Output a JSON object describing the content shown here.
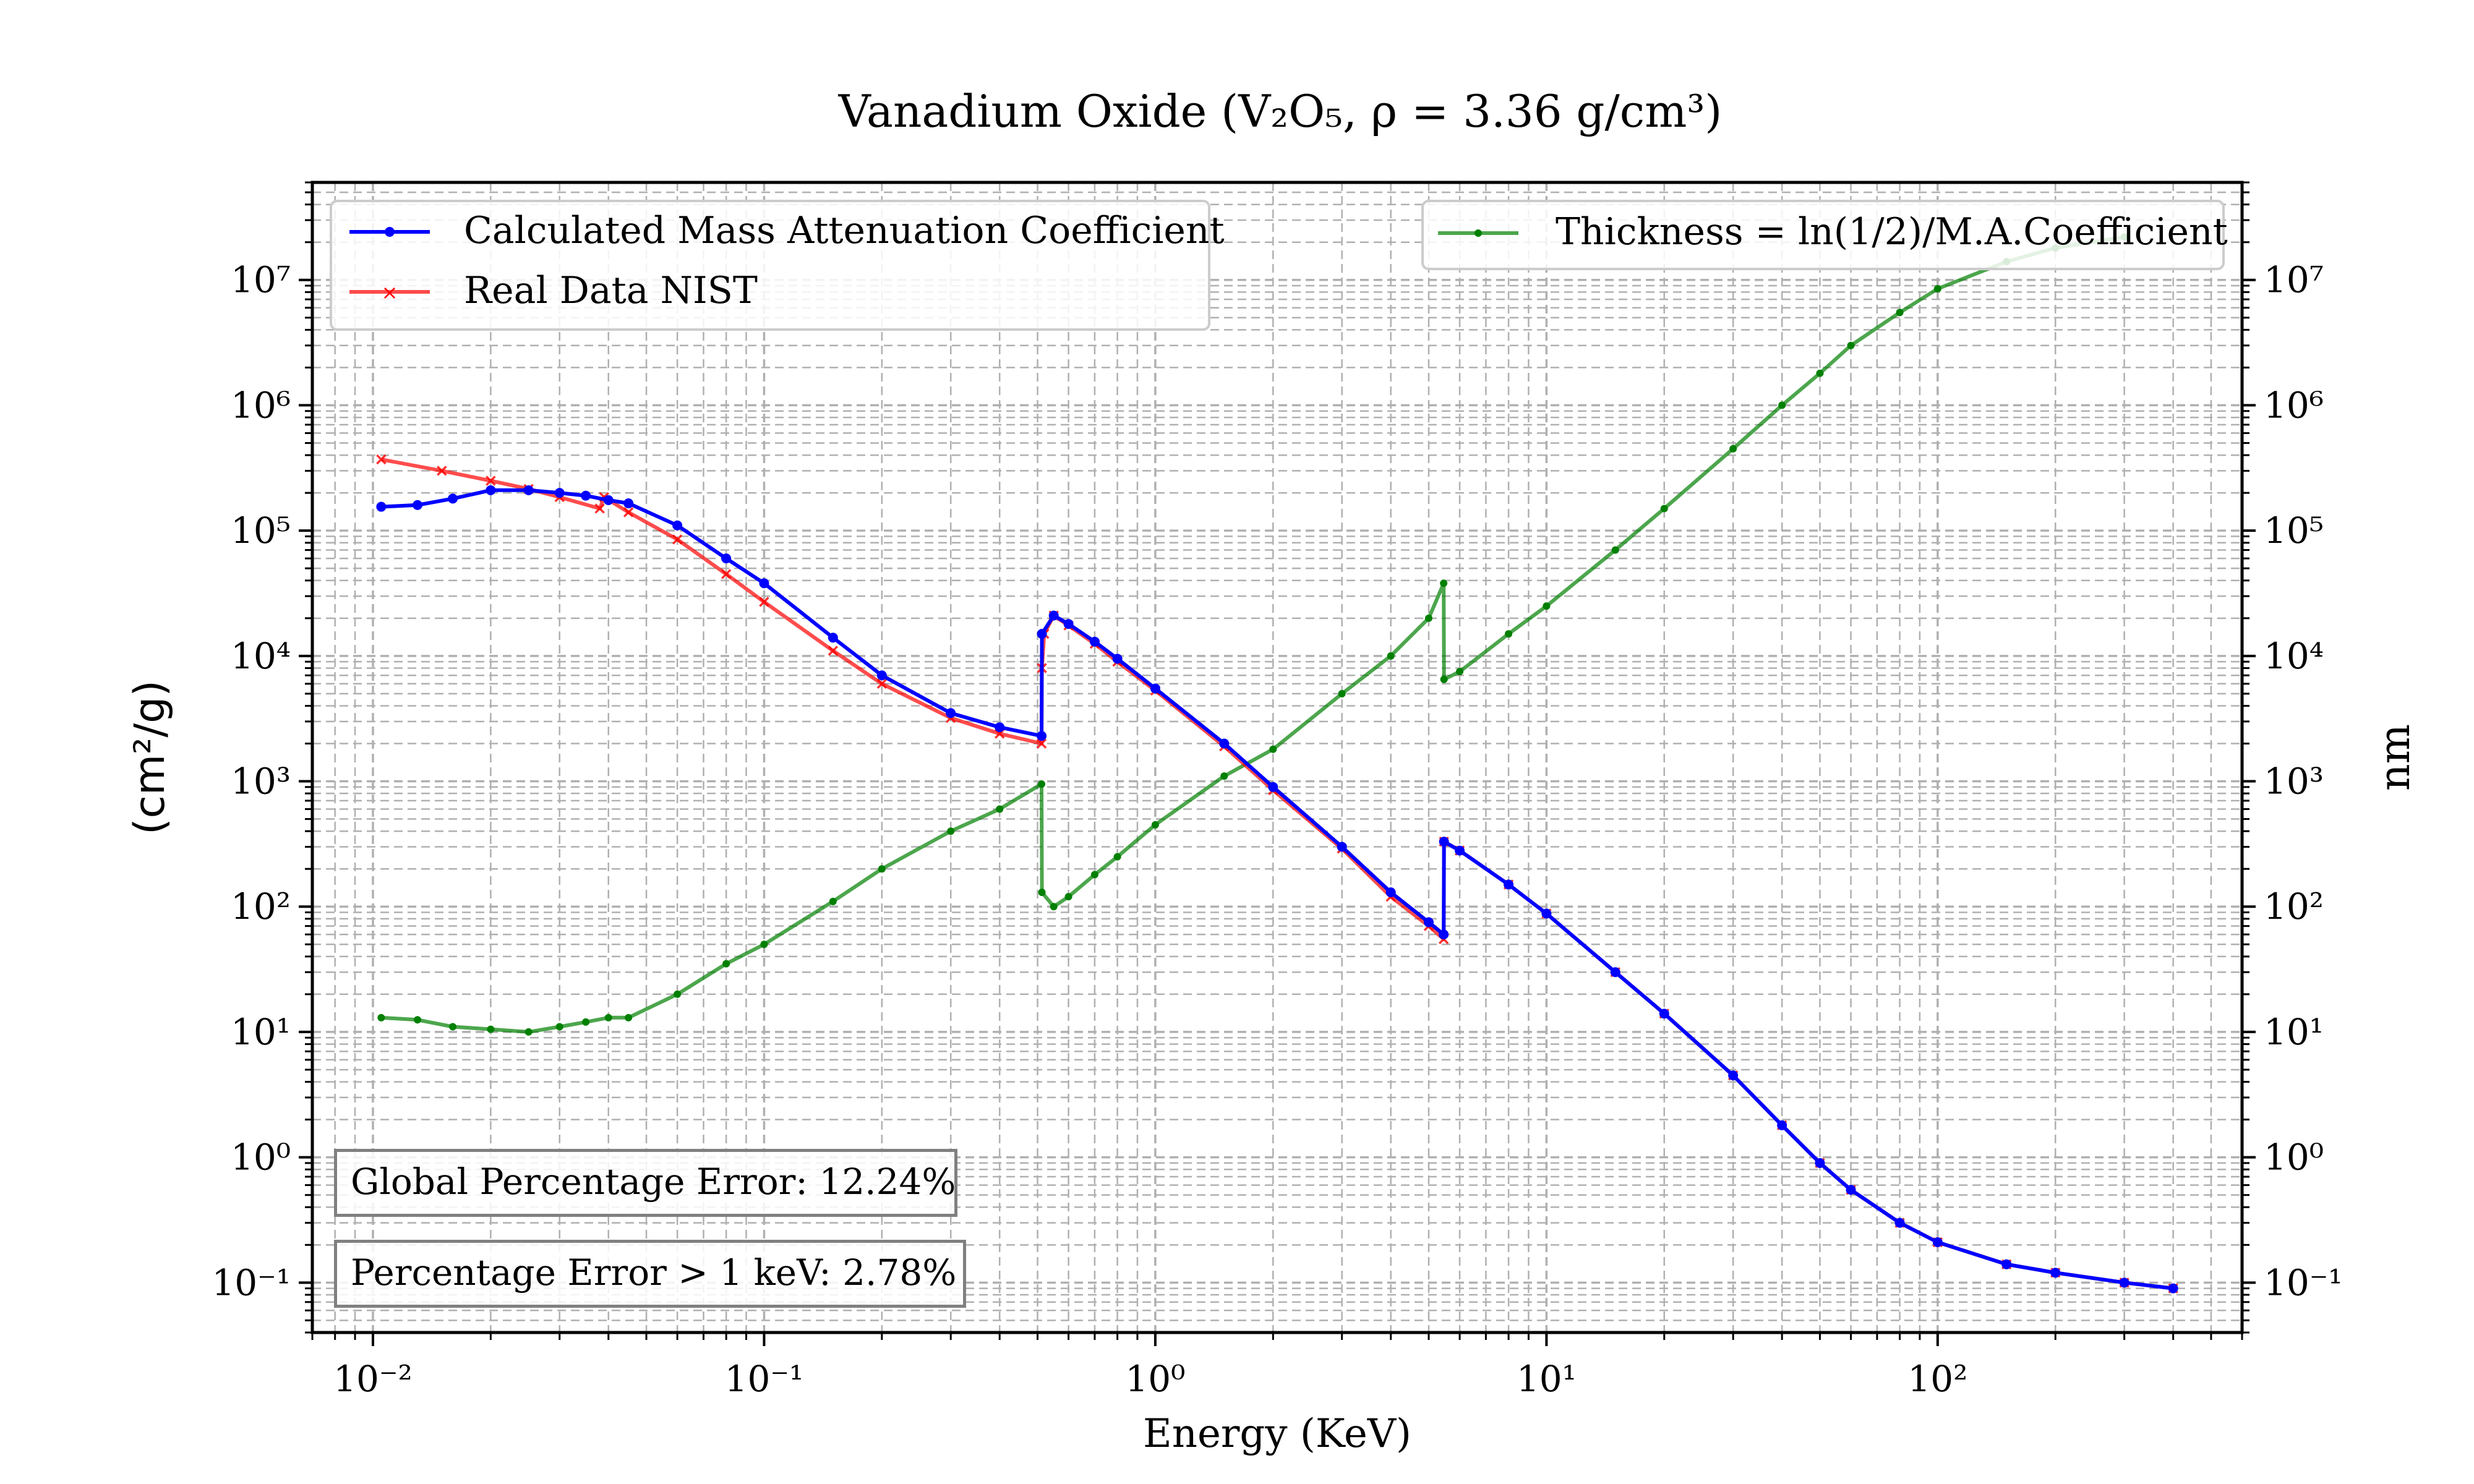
{
  "chart_data": {
    "type": "line",
    "title": "Vanadium Oxide (V₂O₅, ρ = 3.36 g/cm³)",
    "xlabel": "Energy (KeV)",
    "ylabel": "(cm²/g)",
    "y2label": "nm",
    "xscale": "log",
    "yscale": "log",
    "xlim": [
      0.007,
      600
    ],
    "ylim": [
      0.04,
      60000000
    ],
    "grid": true,
    "x_ticks": [
      "10⁻²",
      "10⁻¹",
      "10⁰",
      "10¹",
      "10²"
    ],
    "y_ticks": [
      "10⁻¹",
      "10⁰",
      "10¹",
      "10²",
      "10³",
      "10⁴",
      "10⁵",
      "10⁶",
      "10⁷"
    ],
    "y2_ticks": [
      "10⁻¹",
      "10⁰",
      "10¹",
      "10²",
      "10³",
      "10⁴",
      "10⁵",
      "10⁶",
      "10⁷"
    ],
    "legend_left": "top-left",
    "legend_right": "top-right",
    "series": [
      {
        "name": "Calculated Mass Attenuation Coefficient",
        "color": "#0000ff",
        "marker": "dot",
        "axis": "left",
        "x": [
          0.0105,
          0.013,
          0.016,
          0.02,
          0.025,
          0.03,
          0.035,
          0.04,
          0.045,
          0.06,
          0.08,
          0.1,
          0.15,
          0.2,
          0.3,
          0.4,
          0.512,
          0.513,
          0.55,
          0.6,
          0.7,
          0.8,
          1.0,
          1.5,
          2.0,
          3.0,
          4.0,
          5.0,
          5.46,
          5.47,
          6.0,
          8.0,
          10.0,
          15.0,
          20.0,
          30.0,
          40.0,
          50.0,
          60.0,
          80.0,
          100.0,
          150.0,
          200.0,
          300.0,
          400.0
        ],
        "y": [
          155000,
          160000,
          180000,
          210000,
          210000,
          200000,
          190000,
          175000,
          165000,
          110000,
          60000,
          38000,
          14000,
          7000,
          3500,
          2700,
          2300,
          15000,
          21000,
          18000,
          13000,
          9500,
          5500,
          2000,
          900,
          300,
          130,
          75,
          60,
          330,
          280,
          150,
          88,
          30,
          14,
          4.5,
          1.8,
          0.9,
          0.55,
          0.3,
          0.21,
          0.14,
          0.12,
          0.1,
          0.09
        ]
      },
      {
        "name": "Real Data NIST",
        "color": "#ff0000",
        "marker": "x",
        "axis": "left",
        "x": [
          0.0105,
          0.015,
          0.02,
          0.025,
          0.03,
          0.038,
          0.039,
          0.045,
          0.06,
          0.08,
          0.1,
          0.15,
          0.2,
          0.3,
          0.4,
          0.512,
          0.513,
          0.52,
          0.55,
          0.6,
          0.7,
          0.8,
          1.0,
          1.5,
          2.0,
          3.0,
          4.0,
          5.0,
          5.46,
          5.47,
          6.0,
          8.0,
          10.0,
          15.0,
          20.0,
          30.0,
          40.0,
          50.0,
          60.0,
          80.0,
          100.0,
          150.0,
          200.0,
          300.0,
          400.0
        ],
        "y": [
          370000,
          300000,
          250000,
          215000,
          185000,
          150000,
          185000,
          140000,
          85000,
          45000,
          27000,
          11000,
          6000,
          3200,
          2400,
          2000,
          8000,
          15000,
          21000,
          17500,
          12500,
          9000,
          5300,
          1900,
          850,
          290,
          120,
          70,
          55,
          330,
          280,
          150,
          88,
          30,
          14,
          4.5,
          1.8,
          0.9,
          0.55,
          0.3,
          0.21,
          0.14,
          0.12,
          0.1,
          0.09
        ]
      },
      {
        "name": "Thickness = ln(1/2)/M.A.Coefficient",
        "color": "#008000",
        "marker": "dot",
        "axis": "right",
        "x": [
          0.0105,
          0.013,
          0.016,
          0.02,
          0.025,
          0.03,
          0.035,
          0.04,
          0.045,
          0.06,
          0.08,
          0.1,
          0.15,
          0.2,
          0.3,
          0.4,
          0.512,
          0.513,
          0.55,
          0.6,
          0.7,
          0.8,
          1.0,
          1.5,
          2.0,
          3.0,
          4.0,
          5.0,
          5.46,
          5.47,
          6.0,
          8.0,
          10.0,
          15.0,
          20.0,
          30.0,
          40.0,
          50.0,
          60.0,
          80.0,
          100.0,
          150.0,
          200.0,
          300.0
        ],
        "y": [
          13,
          12.5,
          11,
          10.5,
          10,
          11,
          12,
          13,
          13,
          20,
          35,
          50,
          110,
          200,
          400,
          600,
          950,
          130,
          100,
          120,
          180,
          250,
          450,
          1100,
          1800,
          5000,
          10000,
          20000,
          38000,
          6500,
          7500,
          15000,
          25000,
          70000,
          150000,
          450000,
          1000000,
          1800000,
          3000000,
          5500000,
          8500000,
          14000000,
          18000000,
          22000000
        ]
      }
    ],
    "annotations": [
      "Global Percentage Error: 12.24%",
      "Percentage Error > 1 keV: 2.78%"
    ]
  }
}
